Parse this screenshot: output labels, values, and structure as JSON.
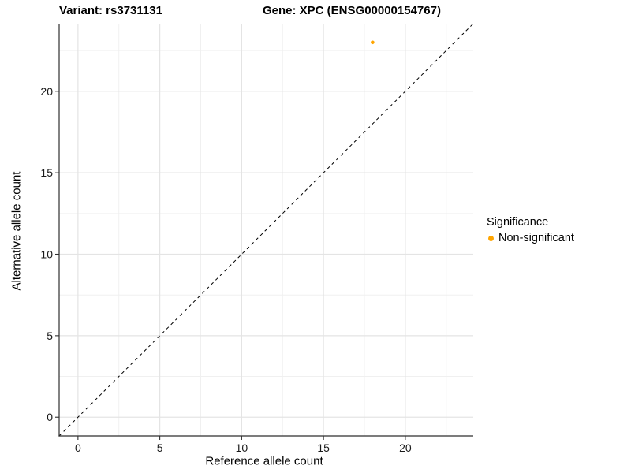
{
  "chart_data": {
    "type": "scatter",
    "title_left": "Variant: rs3731131",
    "title_right": "Gene: XPC (ENSG00000154767)",
    "xlabel": "Reference allele count",
    "ylabel": "Alternative allele count",
    "xlim": [
      -1.15,
      24.15
    ],
    "ylim": [
      -1.15,
      24.15
    ],
    "x_ticks": [
      0,
      5,
      10,
      15,
      20
    ],
    "y_ticks": [
      0,
      5,
      10,
      15,
      20
    ],
    "x_minor_ticks": [
      2.5,
      7.5,
      12.5,
      17.5,
      22.5
    ],
    "y_minor_ticks": [
      2.5,
      7.5,
      12.5,
      17.5,
      22.5
    ],
    "grid": "major+minor",
    "points": [
      {
        "x": 18,
        "y": 23,
        "series": "Non-significant"
      }
    ],
    "identity_line": {
      "slope": 1,
      "intercept": 0,
      "style": "dashed",
      "color": "#000000"
    },
    "legend": {
      "title": "Significance",
      "position": "right-middle",
      "items": [
        {
          "label": "Non-significant",
          "color": "#FFA500"
        }
      ]
    },
    "colors": {
      "point": "#FFA500",
      "grid_major": "#E4E4E4",
      "grid_minor": "#F0F0F0",
      "axis_line": "#2F2F2F",
      "tick_text": "#1A1A1A"
    }
  }
}
